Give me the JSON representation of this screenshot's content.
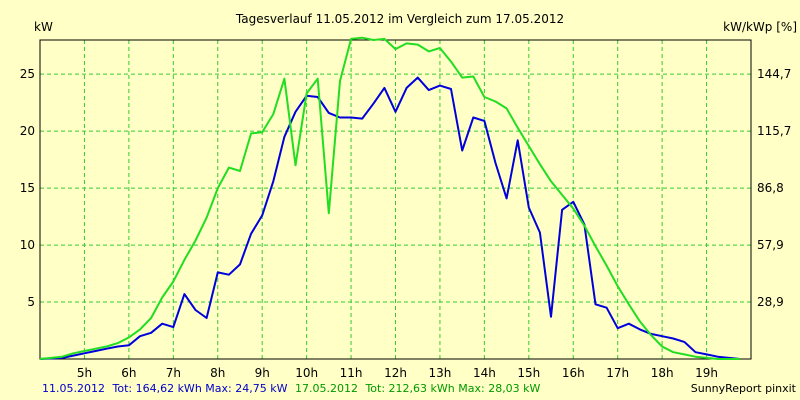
{
  "chart_data": {
    "type": "line",
    "title": "Tagesverlauf 11.05.2012 im Vergleich zum 17.05.2012",
    "ylabel_left": "kW",
    "ylabel_right": "kW/kWp [%]",
    "x_unit": "hour",
    "xlim": [
      4.0,
      20.0
    ],
    "ylim": [
      0,
      28
    ],
    "x_ticks": [
      {
        "value": 5,
        "label": "5h"
      },
      {
        "value": 6,
        "label": "6h"
      },
      {
        "value": 7,
        "label": "7h"
      },
      {
        "value": 8,
        "label": "8h"
      },
      {
        "value": 9,
        "label": "9h"
      },
      {
        "value": 10,
        "label": "10h"
      },
      {
        "value": 11,
        "label": "11h"
      },
      {
        "value": 12,
        "label": "12h"
      },
      {
        "value": 13,
        "label": "13h"
      },
      {
        "value": 14,
        "label": "14h"
      },
      {
        "value": 15,
        "label": "15h"
      },
      {
        "value": 16,
        "label": "16h"
      },
      {
        "value": 17,
        "label": "17h"
      },
      {
        "value": 18,
        "label": "18h"
      },
      {
        "value": 19,
        "label": "19h"
      }
    ],
    "y_ticks_left": [
      {
        "value": 5,
        "label": "5"
      },
      {
        "value": 10,
        "label": "10"
      },
      {
        "value": 15,
        "label": "15"
      },
      {
        "value": 20,
        "label": "20"
      },
      {
        "value": 25,
        "label": "25"
      }
    ],
    "y_ticks_right": [
      {
        "value": 5,
        "label": "28,9"
      },
      {
        "value": 10,
        "label": "57,9"
      },
      {
        "value": 15,
        "label": "86,8"
      },
      {
        "value": 20,
        "label": "115,7"
      },
      {
        "value": 25,
        "label": "144,7"
      }
    ],
    "grid": true,
    "series": [
      {
        "name": "11.05.2012",
        "color": "#0000dd",
        "x": [
          4.0,
          4.5,
          4.75,
          5.0,
          5.25,
          5.5,
          5.75,
          6.0,
          6.25,
          6.5,
          6.75,
          7.0,
          7.25,
          7.5,
          7.75,
          8.0,
          8.25,
          8.5,
          8.75,
          9.0,
          9.25,
          9.5,
          9.75,
          10.0,
          10.25,
          10.5,
          10.75,
          11.0,
          11.25,
          11.5,
          11.75,
          12.0,
          12.25,
          12.5,
          12.75,
          13.0,
          13.25,
          13.5,
          13.75,
          14.0,
          14.25,
          14.5,
          14.75,
          15.0,
          15.25,
          15.5,
          15.75,
          16.0,
          16.25,
          16.5,
          16.75,
          17.0,
          17.25,
          17.5,
          17.75,
          18.0,
          18.25,
          18.5,
          18.75,
          19.0,
          19.25,
          19.5,
          19.75
        ],
        "values": [
          0.0,
          0.1,
          0.3,
          0.5,
          0.7,
          0.9,
          1.1,
          1.2,
          2.0,
          2.3,
          3.1,
          2.8,
          5.7,
          4.3,
          3.6,
          7.6,
          7.4,
          8.3,
          11.0,
          12.6,
          15.6,
          19.5,
          21.7,
          23.1,
          23.0,
          21.6,
          21.2,
          21.2,
          21.1,
          22.4,
          23.8,
          21.7,
          23.8,
          24.7,
          23.6,
          24.0,
          23.7,
          18.3,
          21.2,
          20.9,
          17.2,
          14.1,
          19.2,
          13.3,
          11.1,
          3.7,
          13.1,
          13.8,
          11.8,
          4.8,
          4.5,
          2.7,
          3.1,
          2.6,
          2.2,
          2.0,
          1.8,
          1.5,
          0.6,
          0.4,
          0.2,
          0.1,
          0.0
        ]
      },
      {
        "name": "17.05.2012",
        "color": "#22dd22",
        "x": [
          4.0,
          4.5,
          4.75,
          5.0,
          5.25,
          5.5,
          5.75,
          6.0,
          6.25,
          6.5,
          6.75,
          7.0,
          7.25,
          7.5,
          7.75,
          8.0,
          8.25,
          8.5,
          8.75,
          9.0,
          9.25,
          9.5,
          9.75,
          10.0,
          10.25,
          10.5,
          10.75,
          11.0,
          11.25,
          11.5,
          11.75,
          12.0,
          12.25,
          12.5,
          12.75,
          13.0,
          13.25,
          13.5,
          13.75,
          14.0,
          14.25,
          14.5,
          14.75,
          15.0,
          15.25,
          15.5,
          15.75,
          16.0,
          16.25,
          16.5,
          16.75,
          17.0,
          17.25,
          17.5,
          17.75,
          18.0,
          18.25,
          18.5,
          18.75,
          19.0,
          19.25,
          19.5,
          19.75
        ],
        "values": [
          0.0,
          0.2,
          0.5,
          0.7,
          0.9,
          1.1,
          1.4,
          1.9,
          2.6,
          3.6,
          5.4,
          6.8,
          8.7,
          10.4,
          12.4,
          15.0,
          16.8,
          16.5,
          19.8,
          19.9,
          21.5,
          24.6,
          17.0,
          23.3,
          24.6,
          12.8,
          24.4,
          28.1,
          28.2,
          28.0,
          28.1,
          27.2,
          27.7,
          27.6,
          27.0,
          27.3,
          26.1,
          24.7,
          24.8,
          23.0,
          22.6,
          22.0,
          20.3,
          18.7,
          17.1,
          15.6,
          14.4,
          13.2,
          11.7,
          9.9,
          8.2,
          6.4,
          4.8,
          3.3,
          2.1,
          1.1,
          0.6,
          0.4,
          0.2,
          0.1,
          0.0,
          0.0,
          0.0
        ]
      }
    ]
  },
  "footer": {
    "series1_date": "11.05.2012",
    "series1_stats": "Tot: 164,62 kWh Max: 24,75 kW",
    "series2_date": "17.05.2012",
    "series2_stats": "Tot: 212,63 kWh Max: 28,03 kW",
    "brand": "SunnyReport pinxit"
  }
}
